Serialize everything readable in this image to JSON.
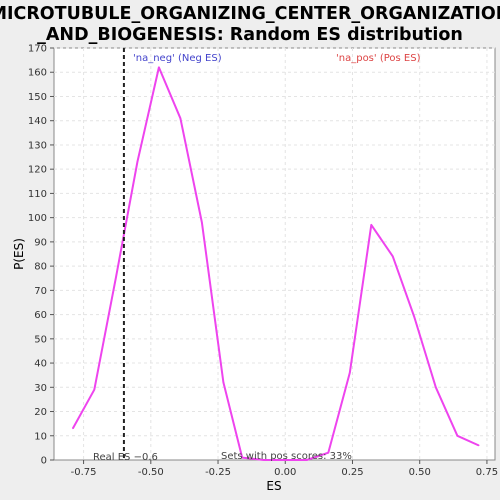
{
  "chart_data": {
    "type": "line",
    "title_lines": [
      "MICROTUBULE_ORGANIZING_CENTER_ORGANIZATION",
      "_AND_BIOGENESIS: Random ES distribution"
    ],
    "xlabel": "ES",
    "ylabel": "P(ES)",
    "xlim": [
      -0.86,
      0.78
    ],
    "ylim": [
      0,
      170
    ],
    "x_ticks": [
      -0.75,
      -0.5,
      -0.25,
      0.0,
      0.25,
      0.5,
      0.75
    ],
    "x_tick_labels": [
      "-0.75",
      "-0.50",
      "-0.25",
      "0.00",
      "0.25",
      "0.50",
      "0.75"
    ],
    "y_ticks": [
      0,
      10,
      20,
      30,
      40,
      50,
      60,
      70,
      80,
      90,
      100,
      110,
      120,
      130,
      140,
      150,
      160,
      170
    ],
    "grid": true,
    "series": [
      {
        "color": "#ee44ee",
        "x": [
          -0.79,
          -0.71,
          -0.63,
          -0.55,
          -0.47,
          -0.39,
          -0.31,
          -0.23,
          -0.16,
          -0.08,
          0.0,
          0.08,
          0.16,
          0.24,
          0.32,
          0.4,
          0.48,
          0.56,
          0.64,
          0.72
        ],
        "y": [
          13,
          29,
          75,
          123,
          162,
          141,
          98,
          32,
          1,
          0,
          0,
          0,
          3,
          36,
          97,
          84,
          59,
          30,
          10,
          6
        ]
      }
    ],
    "real_es": -0.6,
    "real_es_label": "Real ES −0.6",
    "neg_label": "'na_neg' (Neg ES)",
    "pos_label": "'na_pos' (Pos ES)",
    "sets_label": "Sets with pos scores: 33%",
    "neg_color": "#4444cc",
    "pos_color": "#dd4444"
  }
}
